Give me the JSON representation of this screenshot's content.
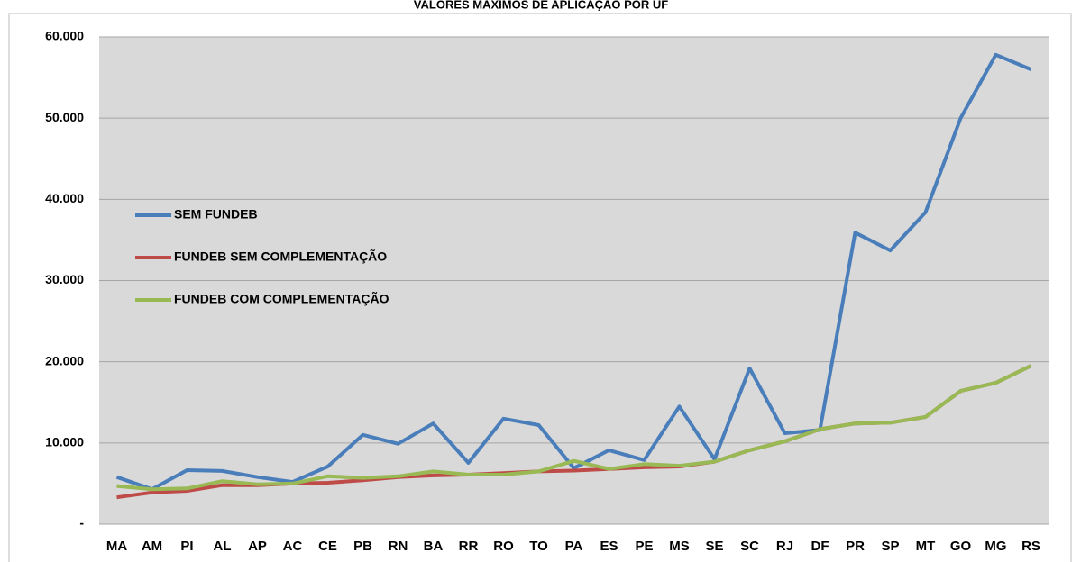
{
  "chart_data": {
    "type": "line",
    "title": "VALORES MÁXIMOS DE APLICAÇÃO POR UF",
    "categories": [
      "MA",
      "AM",
      "PI",
      "AL",
      "AP",
      "AC",
      "CE",
      "PB",
      "RN",
      "BA",
      "RR",
      "RO",
      "TO",
      "PA",
      "ES",
      "PE",
      "MS",
      "SE",
      "SC",
      "RJ",
      "DF",
      "PR",
      "SP",
      "MT",
      "GO",
      "MG",
      "RS"
    ],
    "series": [
      {
        "name": "SEM FUNDEB",
        "color": "#4a7ebb",
        "values": [
          5800,
          4300,
          6650,
          6550,
          5800,
          5200,
          7100,
          11000,
          9900,
          12400,
          7550,
          13000,
          12200,
          6900,
          9100,
          7900,
          14500,
          8000,
          19200,
          11200,
          11600,
          35900,
          33700,
          38400,
          50000,
          57800,
          56000
        ]
      },
      {
        "name": "FUNDEB SEM COMPLEMENTAÇÃO",
        "color": "#be4b48",
        "values": [
          3300,
          3900,
          4100,
          4800,
          4800,
          5000,
          5100,
          5400,
          5800,
          6000,
          6100,
          6300,
          6500,
          6600,
          6800,
          7000,
          7100,
          7700,
          9100,
          10200,
          11700,
          12400,
          12500,
          13200,
          16400,
          17400,
          19500
        ]
      },
      {
        "name": "FUNDEB COM COMPLEMENTAÇÃO",
        "color": "#98b954",
        "values": [
          4700,
          4300,
          4400,
          5300,
          4900,
          5000,
          5900,
          5700,
          5900,
          6500,
          6100,
          6100,
          6500,
          7800,
          6800,
          7400,
          7200,
          7700,
          9100,
          10200,
          11700,
          12400,
          12500,
          13200,
          16400,
          17400,
          19500
        ]
      }
    ],
    "ylim": [
      0,
      60000
    ],
    "yticks": [
      {
        "value": 0,
        "label": "-"
      },
      {
        "value": 10000,
        "label": "10.000"
      },
      {
        "value": 20000,
        "label": "20.000"
      },
      {
        "value": 30000,
        "label": "30.000"
      },
      {
        "value": 40000,
        "label": "40.000"
      },
      {
        "value": 50000,
        "label": "50.000"
      },
      {
        "value": 60000,
        "label": "60.000"
      }
    ],
    "grid": true,
    "legend": "left"
  }
}
